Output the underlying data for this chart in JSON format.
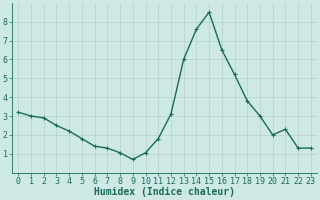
{
  "x": [
    0,
    1,
    2,
    3,
    4,
    5,
    6,
    7,
    8,
    9,
    10,
    11,
    12,
    13,
    14,
    15,
    16,
    17,
    18,
    19,
    20,
    21,
    22,
    23
  ],
  "y": [
    3.2,
    3.0,
    2.9,
    2.5,
    2.2,
    1.8,
    1.4,
    1.3,
    1.05,
    0.7,
    1.05,
    1.8,
    3.1,
    6.0,
    7.6,
    8.5,
    6.5,
    5.2,
    3.8,
    3.0,
    2.0,
    2.3,
    1.3,
    1.3
  ],
  "line_color": "#1a6b5a",
  "marker": "+",
  "marker_size": 3,
  "bg_color": "#cde8e5",
  "grid_color": "#b5d0ce",
  "xlabel": "Humidex (Indice chaleur)",
  "xlabel_fontsize": 7,
  "tick_fontsize": 6,
  "ylim": [
    0,
    9
  ],
  "xlim": [
    -0.5,
    23.5
  ],
  "yticks": [
    1,
    2,
    3,
    4,
    5,
    6,
    7,
    8
  ],
  "xticks": [
    0,
    1,
    2,
    3,
    4,
    5,
    6,
    7,
    8,
    9,
    10,
    11,
    12,
    13,
    14,
    15,
    16,
    17,
    18,
    19,
    20,
    21,
    22,
    23
  ],
  "linewidth": 1.0
}
